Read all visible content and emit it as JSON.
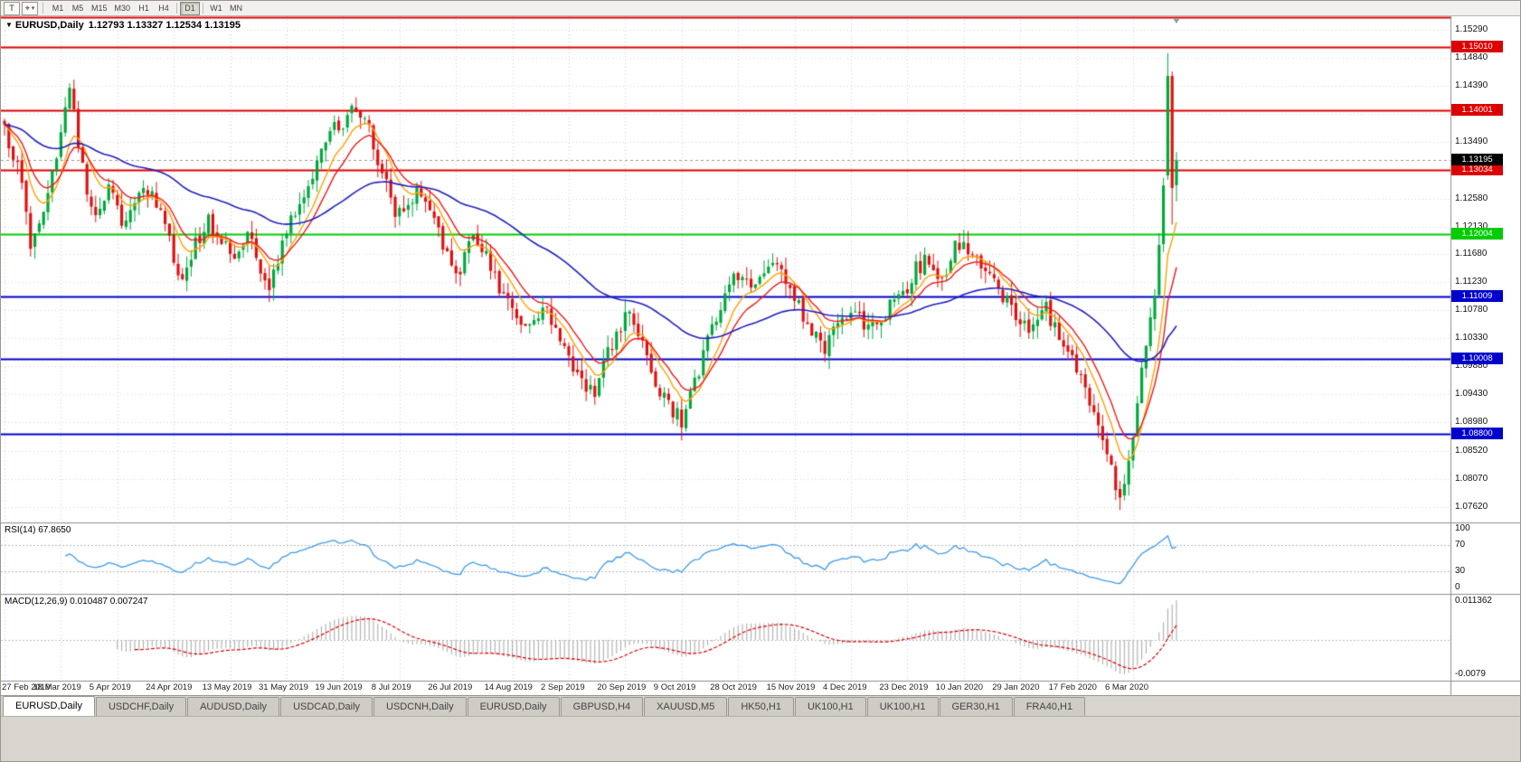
{
  "icons": {
    "template_tool": "T",
    "cursor_tool": "⌖",
    "caret": "▾",
    "chart_menu": "▼"
  },
  "toolbar": {
    "timeframes": [
      "M1",
      "M5",
      "M15",
      "M30",
      "H1",
      "H4",
      "D1",
      "W1",
      "MN"
    ],
    "active_timeframe": "D1"
  },
  "chart": {
    "symbol_period": "EURUSD,Daily",
    "ohlc": "1.12793 1.13327 1.12534 1.13195",
    "current_price_label": "1.13195",
    "current_price_badge_color": "#000000",
    "current_price_line_color": "#9a9a9a",
    "price_axis": [
      "1.15290",
      "1.14840",
      "1.14390",
      "1.13940",
      "1.13490",
      "1.13040",
      "1.12580",
      "1.12130",
      "1.11680",
      "1.11230",
      "1.10780",
      "1.10330",
      "1.09880",
      "1.09430",
      "1.08980",
      "1.08520",
      "1.08070",
      "1.07620"
    ]
  },
  "rsi": {
    "label": "RSI(14) 67.8650",
    "axis": [
      {
        "value": 100,
        "label": "100"
      },
      {
        "value": 70,
        "label": "70"
      },
      {
        "value": 30,
        "label": "30"
      },
      {
        "value": 0,
        "label": "0"
      }
    ]
  },
  "macd": {
    "label": "MACD(12,26,9) 0.010487 0.007247",
    "axis_top": "0.011362",
    "axis_bottom": "-0.0079"
  },
  "date_axis": [
    "27 Feb 2019",
    "18 Mar 2019",
    "5 Apr 2019",
    "24 Apr 2019",
    "13 May 2019",
    "31 May 2019",
    "19 Jun 2019",
    "8 Jul 2019",
    "26 Jul 2019",
    "14 Aug 2019",
    "2 Sep 2019",
    "20 Sep 2019",
    "9 Oct 2019",
    "28 Oct 2019",
    "15 Nov 2019",
    "4 Dec 2019",
    "23 Dec 2019",
    "10 Jan 2020",
    "29 Jan 2020",
    "17 Feb 2020",
    "6 Mar 2020"
  ],
  "tabs": [
    {
      "label": "EURUSD,Daily",
      "active": true
    },
    {
      "label": "USDCHF,Daily",
      "active": false
    },
    {
      "label": "AUDUSD,Daily",
      "active": false
    },
    {
      "label": "USDCAD,Daily",
      "active": false
    },
    {
      "label": "USDCNH,Daily",
      "active": false
    },
    {
      "label": "EURUSD,Daily",
      "active": false
    },
    {
      "label": "GBPUSD,H4",
      "active": false
    },
    {
      "label": "XAUUSD,M5",
      "active": false
    },
    {
      "label": "HK50,H1",
      "active": false
    },
    {
      "label": "UK100,H1",
      "active": false
    },
    {
      "label": "UK100,H1",
      "active": false
    },
    {
      "label": "GER30,H1",
      "active": false
    },
    {
      "label": "FRA40,H1",
      "active": false
    }
  ],
  "chart_data": {
    "type": "candlestick",
    "symbol": "EURUSD",
    "period": "Daily",
    "price_min": 1.0737,
    "price_max": 1.1551,
    "num_candles": 271,
    "candles_per_label": 13,
    "candle_up_color": "#00a83c",
    "candle_down_color": "#e01010",
    "last_ohlc": {
      "open": 1.12793,
      "high": 1.13327,
      "low": 1.12534,
      "close": 1.13195
    },
    "close_anchors": [
      [
        0,
        1.1368
      ],
      [
        3,
        1.1315
      ],
      [
        6,
        1.1185
      ],
      [
        9,
        1.1245
      ],
      [
        12,
        1.133
      ],
      [
        15,
        1.1438
      ],
      [
        17,
        1.135
      ],
      [
        19,
        1.127
      ],
      [
        21,
        1.1225
      ],
      [
        24,
        1.127
      ],
      [
        27,
        1.1225
      ],
      [
        30,
        1.125
      ],
      [
        33,
        1.127
      ],
      [
        36,
        1.124
      ],
      [
        39,
        1.116
      ],
      [
        41,
        1.113
      ],
      [
        44,
        1.1185
      ],
      [
        47,
        1.122
      ],
      [
        50,
        1.1195
      ],
      [
        53,
        1.1165
      ],
      [
        56,
        1.12
      ],
      [
        59,
        1.114
      ],
      [
        61,
        1.112
      ],
      [
        64,
        1.1185
      ],
      [
        67,
        1.124
      ],
      [
        70,
        1.1285
      ],
      [
        73,
        1.133
      ],
      [
        76,
        1.139
      ],
      [
        78,
        1.1365
      ],
      [
        80,
        1.1405
      ],
      [
        82,
        1.1385
      ],
      [
        84,
        1.1365
      ],
      [
        87,
        1.13
      ],
      [
        90,
        1.124
      ],
      [
        93,
        1.124
      ],
      [
        95,
        1.1265
      ],
      [
        98,
        1.124
      ],
      [
        101,
        1.1185
      ],
      [
        104,
        1.1125
      ],
      [
        107,
        1.1195
      ],
      [
        110,
        1.118
      ],
      [
        113,
        1.1135
      ],
      [
        116,
        1.1085
      ],
      [
        119,
        1.1055
      ],
      [
        121,
        1.1048
      ],
      [
        124,
        1.109
      ],
      [
        127,
        1.1045
      ],
      [
        130,
        1.1
      ],
      [
        133,
        1.097
      ],
      [
        136,
        1.0935
      ],
      [
        139,
        1.101
      ],
      [
        142,
        1.1055
      ],
      [
        144,
        1.107
      ],
      [
        147,
        1.102
      ],
      [
        150,
        1.0965
      ],
      [
        153,
        1.0925
      ],
      [
        156,
        1.09
      ],
      [
        159,
        1.096
      ],
      [
        162,
        1.103
      ],
      [
        165,
        1.109
      ],
      [
        168,
        1.114
      ],
      [
        171,
        1.1115
      ],
      [
        174,
        1.114
      ],
      [
        177,
        1.1155
      ],
      [
        180,
        1.113
      ],
      [
        183,
        1.1085
      ],
      [
        186,
        1.104
      ],
      [
        189,
        1.102
      ],
      [
        192,
        1.1055
      ],
      [
        195,
        1.1075
      ],
      [
        198,
        1.1055
      ],
      [
        201,
        1.1048
      ],
      [
        204,
        1.1085
      ],
      [
        207,
        1.1105
      ],
      [
        210,
        1.1145
      ],
      [
        213,
        1.116
      ],
      [
        216,
        1.1125
      ],
      [
        219,
        1.1185
      ],
      [
        222,
        1.1175
      ],
      [
        225,
        1.115
      ],
      [
        228,
        1.112
      ],
      [
        231,
        1.1095
      ],
      [
        234,
        1.106
      ],
      [
        237,
        1.1045
      ],
      [
        240,
        1.108
      ],
      [
        243,
        1.1035
      ],
      [
        246,
        1.1
      ],
      [
        249,
        1.096
      ],
      [
        252,
        1.089
      ],
      [
        254,
        1.0845
      ],
      [
        256,
        1.08
      ],
      [
        257,
        1.0782
      ],
      [
        258,
        1.0795
      ],
      [
        259,
        1.0835
      ],
      [
        260,
        1.087
      ],
      [
        261,
        1.0925
      ],
      [
        262,
        1.098
      ],
      [
        263,
        1.1025
      ],
      [
        264,
        1.1065
      ],
      [
        265,
        1.111
      ],
      [
        266,
        1.118
      ],
      [
        267,
        1.1285
      ]
    ],
    "explicit_last_candles": [
      {
        "o": 1.1295,
        "h": 1.1492,
        "l": 1.1288,
        "c": 1.1455
      },
      {
        "o": 1.1455,
        "h": 1.1462,
        "l": 1.1216,
        "c": 1.1275
      },
      {
        "o": 1.12793,
        "h": 1.13327,
        "l": 1.12534,
        "c": 1.13195
      }
    ],
    "horizontal_lines": [
      {
        "price": 1.1549,
        "label": "",
        "color": "#dd0000"
      },
      {
        "price": 1.1501,
        "label": "1.15010",
        "color": "#dd0000"
      },
      {
        "price": 1.14001,
        "label": "1.14001",
        "color": "#dd0000"
      },
      {
        "price": 1.13034,
        "label": "1.13034",
        "color": "#dd0000"
      },
      {
        "price": 1.12004,
        "label": "1.12004",
        "color": "#00cc00"
      },
      {
        "price": 1.11009,
        "label": "1.11009",
        "color": "#0000cc"
      },
      {
        "price": 1.10008,
        "label": "1.10008",
        "color": "#0000cc"
      },
      {
        "price": 1.088,
        "label": "1.08800",
        "color": "#0000cc"
      }
    ],
    "moving_averages": [
      {
        "period": 8,
        "color": "#ffa000"
      },
      {
        "period": 13,
        "color": "#f01818"
      },
      {
        "period": 55,
        "color": "#2020c0"
      }
    ],
    "indicators": {
      "rsi": {
        "period": 14,
        "current": 67.865,
        "levels": [
          70,
          30
        ],
        "color": "#3d9be9"
      },
      "macd": {
        "fast": 12,
        "slow": 26,
        "signal": 9,
        "macd_current": 0.010487,
        "signal_current": 0.007247,
        "scale_max": 0.011362,
        "scale_min": -0.0079,
        "bar_color": "#a6a6a6",
        "signal_color": "#dd0000"
      }
    }
  }
}
